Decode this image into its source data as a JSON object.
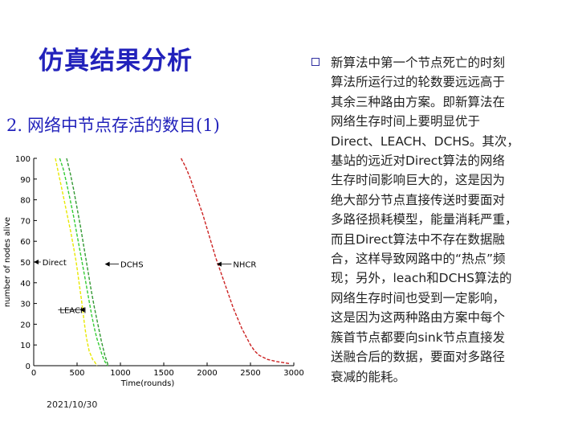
{
  "slide": {
    "title": "仿真结果分析",
    "subheading_number": "2.",
    "subheading_text": "网络中节点存活的数目(1)",
    "date": "2021/10/30"
  },
  "body_lines": [
    "新算法中第一个节点死亡的时刻",
    "算法所运行过的轮数要远远高于",
    "其余三种路由方案。即新算法在",
    "网络生存时间上要明显优于",
    "Direct、LEACH、DCHS。其次，",
    "基站的远近对Direct算法的网络",
    "生存时间影响巨大的，这是因为",
    "绝大部分节点直接传送时要面对",
    "多路径损耗模型，能量消耗严重，",
    "而且Direct算法中不存在数据融",
    "合，这样导致网路中的“热点”频",
    "现；另外，leach和DCHS算法的",
    "网络生存时间也受到一定影响，",
    "这是因为这两种路由方案中每个",
    "簇首节点都要向sink节点直接发",
    "送融合后的数据，要面对多路径",
    "衰减的能耗。"
  ],
  "chart_data": {
    "type": "line",
    "xlabel": "Time(rounds)",
    "ylabel": "number of nodes alive",
    "xlim": [
      0,
      3000
    ],
    "ylim": [
      0,
      100
    ],
    "x_ticks": [
      0,
      500,
      1000,
      1500,
      2000,
      2500,
      3000
    ],
    "y_ticks": [
      0,
      10,
      20,
      30,
      40,
      50,
      60,
      70,
      80,
      90,
      100
    ],
    "series": [
      {
        "name": "Direct",
        "color": "#e8e800",
        "x": [
          250,
          280,
          320,
          360,
          400,
          430,
          460,
          490,
          510,
          530,
          550,
          565,
          580,
          595,
          610,
          625,
          640,
          660,
          680,
          700,
          715,
          730
        ],
        "y": [
          100,
          94,
          86,
          78,
          70,
          64,
          57,
          50,
          44,
          38,
          32,
          27,
          22,
          17,
          13,
          10,
          7,
          5,
          3,
          2,
          1,
          0
        ]
      },
      {
        "name": "LEACH",
        "color": "#33cc33",
        "x": [
          300,
          340,
          380,
          420,
          460,
          500,
          540,
          580,
          610,
          640,
          670,
          700,
          730,
          760,
          790,
          820,
          850
        ],
        "y": [
          100,
          95,
          88,
          80,
          72,
          63,
          54,
          45,
          38,
          31,
          24,
          18,
          13,
          9,
          5,
          2,
          0
        ]
      },
      {
        "name": "DCHS",
        "color": "#339933",
        "x": [
          380,
          420,
          460,
          500,
          540,
          580,
          620,
          660,
          700,
          740,
          780,
          820,
          860
        ],
        "y": [
          100,
          93,
          85,
          76,
          67,
          57,
          47,
          37,
          28,
          20,
          12,
          5,
          0
        ]
      },
      {
        "name": "NHCR",
        "color": "#cc2222",
        "x": [
          1700,
          1750,
          1800,
          1850,
          1900,
          1950,
          2000,
          2050,
          2100,
          2150,
          2200,
          2250,
          2300,
          2350,
          2400,
          2450,
          2500,
          2550,
          2600,
          2700,
          2800,
          2950
        ],
        "y": [
          100,
          96,
          91,
          85,
          79,
          73,
          66,
          59,
          52,
          46,
          40,
          34,
          28,
          23,
          18,
          14,
          10,
          7,
          5,
          3,
          2,
          1
        ]
      }
    ],
    "annotations": [
      {
        "text": "Direct",
        "x": 100,
        "y": 50,
        "target_x": 0,
        "target_y": 50
      },
      {
        "text": "DCHS",
        "x": 1000,
        "y": 49,
        "target_x": 820,
        "target_y": 49
      },
      {
        "text": "NHCR",
        "x": 2300,
        "y": 49,
        "target_x": 2110,
        "target_y": 49
      },
      {
        "text": "LEACH",
        "x": 300,
        "y": 27,
        "target_x": 530,
        "target_y": 27
      }
    ],
    "grid": false,
    "legend": "none"
  }
}
